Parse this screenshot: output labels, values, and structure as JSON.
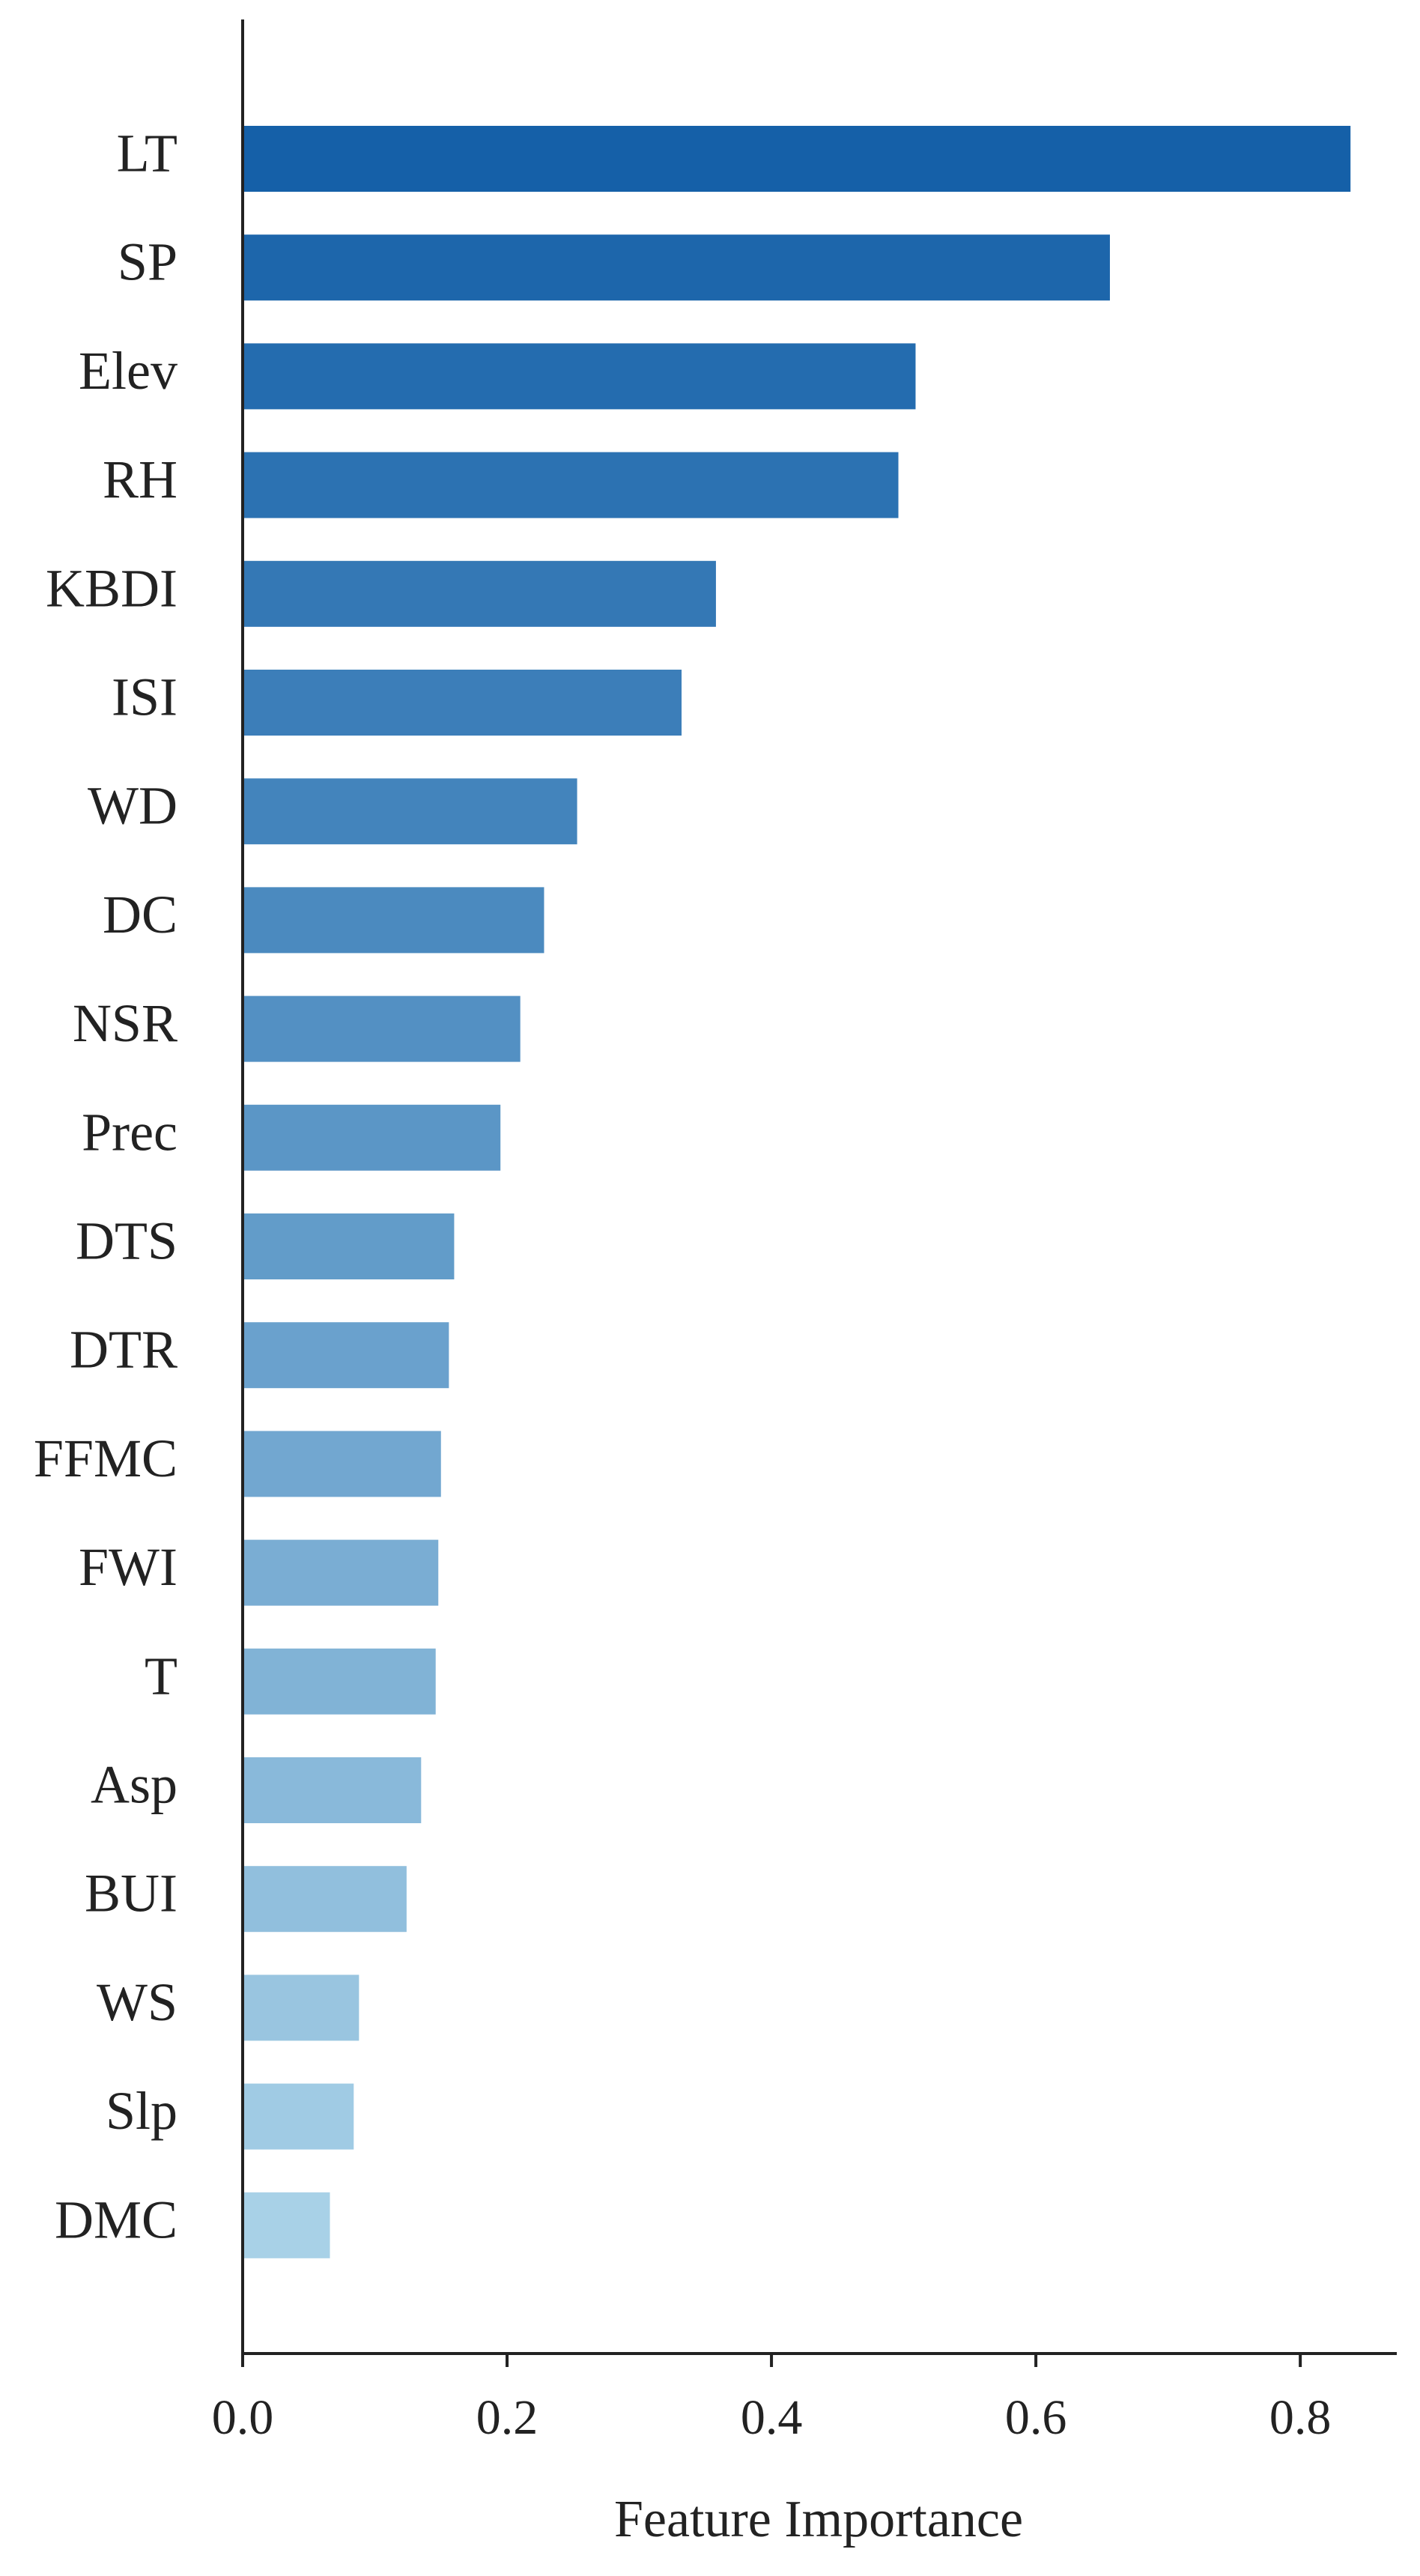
{
  "chart_data": {
    "type": "barh",
    "categories": [
      "LT",
      "SP",
      "Elev",
      "RH",
      "KBDI",
      "ISI",
      "WD",
      "DC",
      "NSR",
      "Prec",
      "DTS",
      "DTR",
      "FFMC",
      "FWI",
      "T",
      "Asp",
      "BUI",
      "WS",
      "Slp",
      "DMC"
    ],
    "values": [
      0.838,
      0.656,
      0.509,
      0.496,
      0.358,
      0.332,
      0.253,
      0.228,
      0.21,
      0.195,
      0.16,
      0.156,
      0.15,
      0.148,
      0.146,
      0.135,
      0.124,
      0.088,
      0.084,
      0.066
    ],
    "colors": [
      "#1560a8",
      "#1d66ab",
      "#246caf",
      "#2c72b2",
      "#3478b5",
      "#3c7eb9",
      "#4384bc",
      "#4b8abf",
      "#5390c3",
      "#5b96c6",
      "#629cc9",
      "#6aa1cd",
      "#72a7d0",
      "#7aadd3",
      "#81b3d6",
      "#89b9da",
      "#91bfdd",
      "#99c5e0",
      "#a0cbe4",
      "#a8d1e7"
    ],
    "xlabel": "Feature Importance",
    "xlim": [
      0,
      0.873
    ],
    "xticks": [
      {
        "value": 0,
        "label": "0.0"
      },
      0.2,
      0.4,
      0.6,
      0.8
    ],
    "grid": false
  }
}
